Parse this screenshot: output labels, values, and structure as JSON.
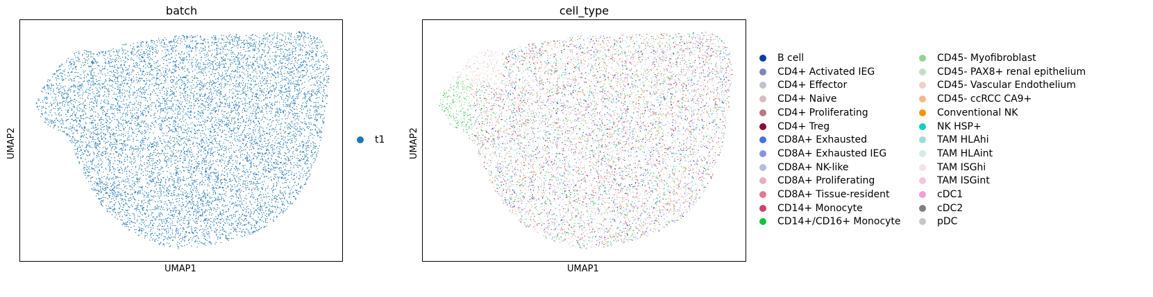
{
  "chart_data": [
    {
      "type": "scatter",
      "title": "batch",
      "xlabel": "UMAP1",
      "ylabel": "UMAP2",
      "grid": false,
      "legend": "right",
      "series": [
        {
          "name": "t1",
          "color": "#1f77b4"
        }
      ]
    },
    {
      "type": "scatter",
      "title": "cell_type",
      "xlabel": "UMAP1",
      "ylabel": "UMAP2",
      "grid": false,
      "legend": "right",
      "series": [
        {
          "name": "B cell",
          "color": "#023fa5"
        },
        {
          "name": "CD4+ Activated IEG",
          "color": "#7d87b9"
        },
        {
          "name": "CD4+ Effector",
          "color": "#bec1d4"
        },
        {
          "name": "CD4+ Naive",
          "color": "#d6bcc0"
        },
        {
          "name": "CD4+ Proliferating",
          "color": "#bb7784"
        },
        {
          "name": "CD4+ Treg",
          "color": "#8e063b"
        },
        {
          "name": "CD8A+ Exhausted",
          "color": "#4a6fe3"
        },
        {
          "name": "CD8A+ Exhausted IEG",
          "color": "#8595e1"
        },
        {
          "name": "CD8A+ NK-like",
          "color": "#b5bbe3"
        },
        {
          "name": "CD8A+ Proliferating",
          "color": "#e6afb9"
        },
        {
          "name": "CD8A+ Tissue-resident",
          "color": "#e07b91"
        },
        {
          "name": "CD14+ Monocyte",
          "color": "#d33f6a"
        },
        {
          "name": "CD14+/CD16+ Monocyte",
          "color": "#11c638"
        },
        {
          "name": "CD45- Myofibroblast",
          "color": "#8dd593"
        },
        {
          "name": "CD45- PAX8+ renal epithelium",
          "color": "#c6dec7"
        },
        {
          "name": "CD45- Vascular Endothelium",
          "color": "#ead3c6"
        },
        {
          "name": "CD45- ccRCC CA9+",
          "color": "#f0b98d"
        },
        {
          "name": "Conventional NK",
          "color": "#ef9708"
        },
        {
          "name": "NK HSP+",
          "color": "#0fcfc0"
        },
        {
          "name": "TAM HLAhi",
          "color": "#9cded6"
        },
        {
          "name": "TAM HLAint",
          "color": "#d5eae7"
        },
        {
          "name": "TAM ISGhi",
          "color": "#f3e1eb"
        },
        {
          "name": "TAM ISGint",
          "color": "#f6c4e1"
        },
        {
          "name": "cDC1",
          "color": "#f79cd4"
        },
        {
          "name": "cDC2",
          "color": "#7f7f7f"
        },
        {
          "name": "pDC",
          "color": "#c7c7c7"
        }
      ]
    }
  ]
}
